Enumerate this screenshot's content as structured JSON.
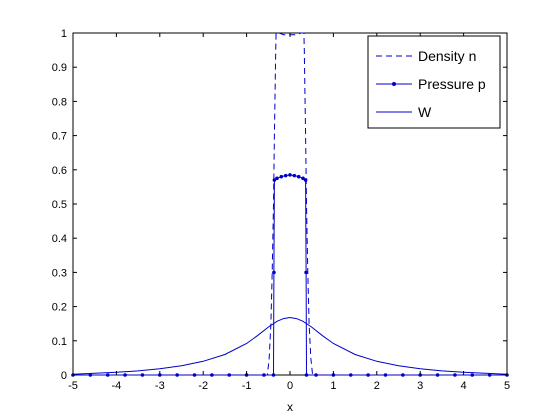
{
  "chart_data": {
    "type": "line",
    "title": "",
    "xlabel": "x",
    "ylabel": "",
    "xlim": [
      -5,
      5
    ],
    "ylim": [
      0,
      1
    ],
    "xticks": [
      "-5",
      "-4",
      "-3",
      "-2",
      "-1",
      "0",
      "1",
      "2",
      "3",
      "4",
      "5"
    ],
    "yticks": [
      "0",
      "0.1",
      "0.2",
      "0.3",
      "0.4",
      "0.5",
      "0.6",
      "0.7",
      "0.8",
      "0.9",
      "1"
    ],
    "legend_position": "top-right",
    "grid": false,
    "color": "#0000cc",
    "series": [
      {
        "name": "Density n",
        "style": "dashed",
        "x": [
          -5,
          -0.52,
          -0.48,
          -0.44,
          -0.41,
          -0.38,
          -0.36,
          -0.34,
          -0.33,
          -0.32,
          -0.3,
          -0.25,
          -0.15,
          0,
          0.15,
          0.25,
          0.3,
          0.32,
          0.33,
          0.34,
          0.36,
          0.38,
          0.41,
          0.44,
          0.48,
          0.52,
          5
        ],
        "y": [
          0,
          0,
          0.05,
          0.15,
          0.3,
          0.5,
          0.7,
          0.85,
          0.95,
          1.0,
          1.0,
          1.0,
          0.995,
          0.995,
          0.995,
          1.0,
          1.0,
          1.0,
          0.95,
          0.85,
          0.7,
          0.5,
          0.3,
          0.15,
          0.05,
          0,
          0
        ]
      },
      {
        "name": "Pressure p",
        "style": "solid-markers",
        "x": [
          -5,
          -4.6,
          -4.2,
          -3.8,
          -3.4,
          -3.0,
          -2.6,
          -2.2,
          -1.8,
          -1.4,
          -1.0,
          -0.6,
          -0.38,
          -0.37,
          -0.36,
          -0.3,
          -0.2,
          -0.1,
          0,
          0.1,
          0.2,
          0.3,
          0.36,
          0.37,
          0.38,
          0.6,
          1.0,
          1.4,
          1.8,
          2.2,
          2.6,
          3.0,
          3.4,
          3.8,
          4.2,
          4.6,
          5
        ],
        "y": [
          0,
          0,
          0,
          0,
          0,
          0,
          0,
          0,
          0,
          0,
          0,
          0,
          0,
          0.3,
          0.57,
          0.575,
          0.58,
          0.583,
          0.585,
          0.583,
          0.58,
          0.575,
          0.57,
          0.3,
          0,
          0,
          0,
          0,
          0,
          0,
          0,
          0,
          0,
          0,
          0,
          0,
          0
        ]
      },
      {
        "name": "W",
        "style": "solid",
        "x": [
          -5,
          -4.5,
          -4,
          -3.5,
          -3,
          -2.5,
          -2,
          -1.5,
          -1,
          -0.75,
          -0.5,
          -0.3,
          -0.15,
          0,
          0.15,
          0.3,
          0.5,
          0.75,
          1,
          1.5,
          2,
          2.5,
          3,
          3.5,
          4,
          4.5,
          5
        ],
        "y": [
          0.002,
          0.005,
          0.008,
          0.012,
          0.018,
          0.027,
          0.04,
          0.06,
          0.092,
          0.115,
          0.14,
          0.157,
          0.165,
          0.168,
          0.165,
          0.157,
          0.14,
          0.115,
          0.092,
          0.06,
          0.04,
          0.027,
          0.018,
          0.012,
          0.008,
          0.005,
          0.002
        ]
      }
    ]
  }
}
